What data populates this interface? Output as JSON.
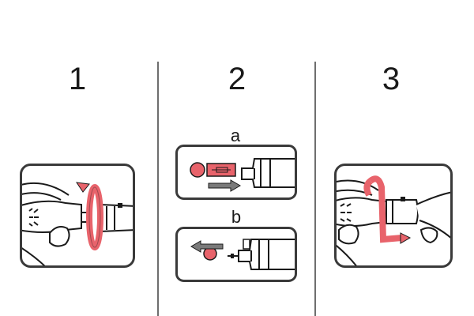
{
  "steps": [
    {
      "number": "1"
    },
    {
      "number": "2",
      "substeps": [
        {
          "label": "a"
        },
        {
          "label": "b"
        }
      ]
    },
    {
      "number": "3"
    }
  ],
  "colors": {
    "accent": "#e8636b",
    "outline": "#1a1a1a",
    "arrow_gray": "#7a7a7a",
    "divider": "#6e6e6e"
  },
  "icons": {
    "step1": "twist-cap-off-icon",
    "step2a": "attach-needle-icon",
    "step2b": "remove-needle-icon",
    "step3": "twist-cap-on-icon"
  }
}
